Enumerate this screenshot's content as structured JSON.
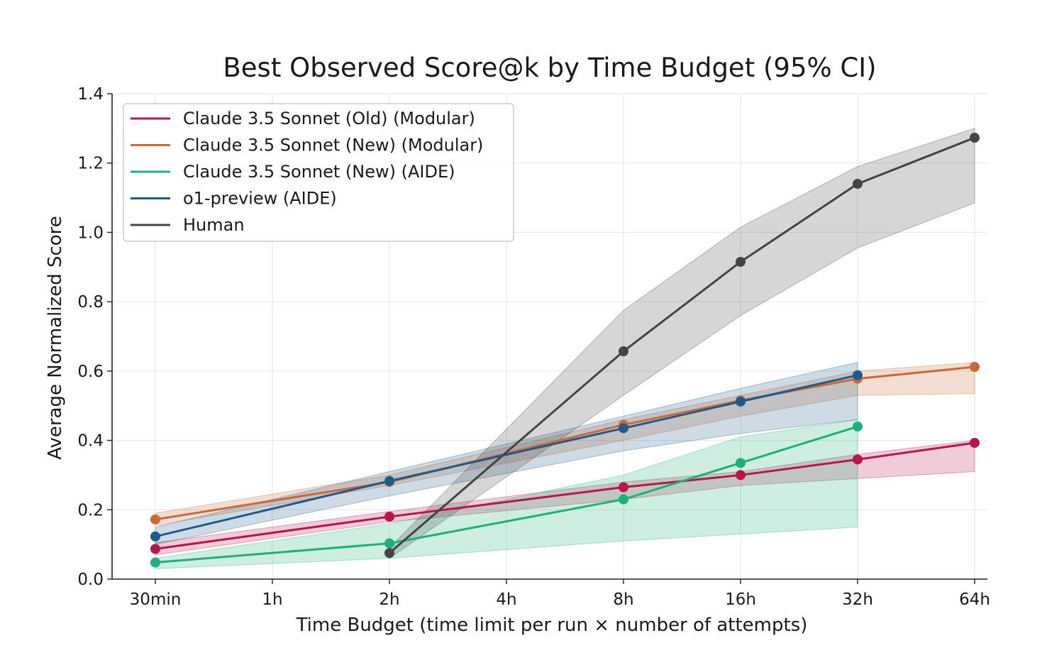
{
  "chart_data": {
    "type": "line",
    "title": "Best Observed Score@k by Time Budget (95% CI)",
    "xlabel": "Time Budget (time limit per run × number of attempts)",
    "ylabel": "Average Normalized Score",
    "categories": [
      "30min",
      "1h",
      "2h",
      "4h",
      "8h",
      "16h",
      "32h",
      "64h"
    ],
    "yticks": [
      "0.0",
      "0.2",
      "0.4",
      "0.6",
      "0.8",
      "1.0",
      "1.2",
      "1.4"
    ],
    "ylim": [
      0,
      1.4
    ],
    "grid": true,
    "legend_position": "top-left",
    "series": [
      {
        "name": "Claude 3.5 Sonnet (Old) (Modular)",
        "color": "#b5174b",
        "x": [
          "30min",
          "2h",
          "8h",
          "16h",
          "32h",
          "64h"
        ],
        "values": [
          0.087,
          0.18,
          0.265,
          0.3,
          0.345,
          0.393
        ],
        "ci_low": [
          0.07,
          0.165,
          0.23,
          0.27,
          0.29,
          0.31
        ],
        "ci_high": [
          0.105,
          0.195,
          0.28,
          0.31,
          0.36,
          0.4
        ]
      },
      {
        "name": "Claude 3.5 Sonnet (New) (Modular)",
        "color": "#c9683a",
        "x": [
          "30min",
          "2h",
          "8h",
          "16h",
          "32h",
          "64h"
        ],
        "values": [
          0.172,
          0.28,
          0.445,
          0.515,
          0.578,
          0.612
        ],
        "ci_low": [
          0.155,
          0.27,
          0.4,
          0.47,
          0.53,
          0.535
        ],
        "ci_high": [
          0.19,
          0.3,
          0.46,
          0.53,
          0.6,
          0.625
        ]
      },
      {
        "name": "Claude 3.5 Sonnet (New) (AIDE)",
        "color": "#1fb07a",
        "x": [
          "30min",
          "2h",
          "8h",
          "16h",
          "32h"
        ],
        "values": [
          0.048,
          0.103,
          0.23,
          0.335,
          0.44
        ],
        "ci_low": [
          0.03,
          0.06,
          0.11,
          0.13,
          0.15
        ],
        "ci_high": [
          0.06,
          0.16,
          0.3,
          0.41,
          0.46
        ]
      },
      {
        "name": "o1-preview (AIDE)",
        "color": "#1f5a8a",
        "x": [
          "30min",
          "2h",
          "8h",
          "16h",
          "32h"
        ],
        "values": [
          0.123,
          0.283,
          0.435,
          0.512,
          0.588
        ],
        "ci_low": [
          0.1,
          0.24,
          0.37,
          0.42,
          0.46
        ],
        "ci_high": [
          0.15,
          0.31,
          0.47,
          0.55,
          0.625
        ]
      },
      {
        "name": "Human",
        "color": "#444444",
        "x": [
          "2h",
          "8h",
          "16h",
          "32h",
          "64h"
        ],
        "values": [
          0.075,
          0.657,
          0.915,
          1.14,
          1.273
        ],
        "ci_low": [
          0.06,
          0.53,
          0.76,
          0.955,
          1.085
        ],
        "ci_high": [
          0.09,
          0.775,
          1.015,
          1.19,
          1.3
        ]
      }
    ]
  }
}
